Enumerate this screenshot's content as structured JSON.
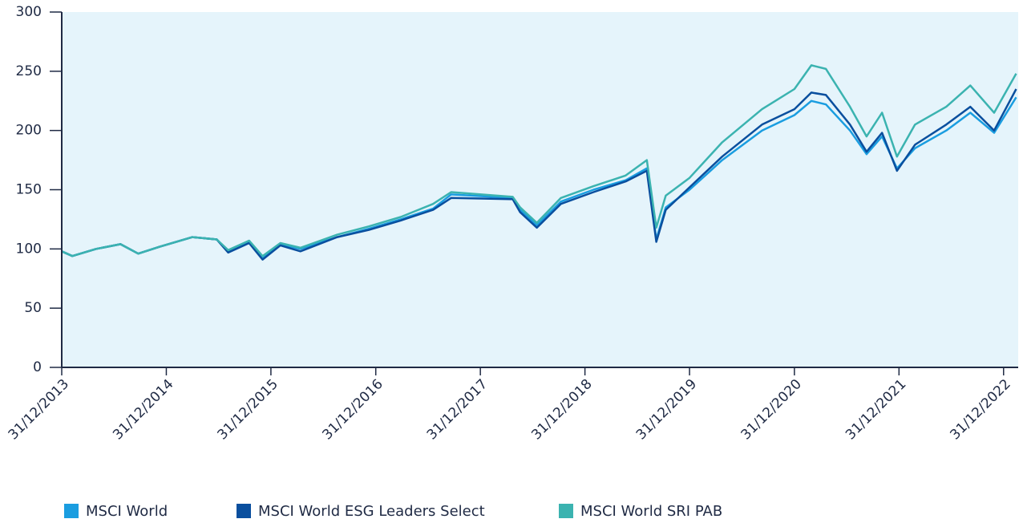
{
  "chart_data": {
    "type": "line",
    "x": [
      "31/12/2013",
      "06/02/2014",
      "30/04/2014",
      "24/07/2014",
      "24/09/2014",
      "09/12/2014",
      "01/04/2015",
      "25/06/2015",
      "04/08/2015",
      "16/10/2015",
      "02/12/2015",
      "02/02/2016",
      "12/04/2016",
      "18/08/2016",
      "06/12/2016",
      "28/03/2017",
      "19/07/2017",
      "20/09/2017",
      "23/04/2018",
      "19/05/2018",
      "16/07/2018",
      "08/10/2018",
      "30/01/2019",
      "22/05/2019",
      "04/08/2019",
      "06/09/2019",
      "09/10/2019",
      "31/12/2019",
      "23/04/2020",
      "09/09/2020",
      "31/12/2020",
      "28/02/2021",
      "20/04/2021",
      "13/07/2021",
      "09/09/2021",
      "02/11/2021",
      "24/12/2021",
      "25/02/2022",
      "14/06/2022",
      "06/09/2022",
      "28/11/2022",
      "13/02/2023"
    ],
    "series": [
      {
        "name": "MSCI World",
        "color": "#1a9de0",
        "values": [
          98,
          94,
          100,
          104,
          96,
          102,
          110,
          108,
          98,
          106,
          93,
          104,
          100,
          110,
          117,
          125,
          134,
          146,
          143,
          133,
          120,
          140,
          150,
          158,
          168,
          108,
          135,
          150,
          175,
          200,
          213,
          225,
          222,
          200,
          180,
          195,
          168,
          185,
          200,
          215,
          198,
          228
        ]
      },
      {
        "name": "MSCI World ESG Leaders Select",
        "color": "#0a4f9e",
        "values": [
          98,
          94,
          100,
          104,
          96,
          102,
          110,
          108,
          97,
          105,
          91,
          103,
          98,
          110,
          116,
          124,
          133,
          143,
          142,
          131,
          118,
          138,
          148,
          157,
          166,
          106,
          133,
          152,
          178,
          205,
          218,
          232,
          230,
          205,
          182,
          198,
          166,
          188,
          205,
          220,
          200,
          235
        ]
      },
      {
        "name": "MSCI World SRI PAB",
        "color": "#3bb3b0",
        "values": [
          98,
          94,
          100,
          104,
          96,
          102,
          110,
          108,
          99,
          107,
          94,
          105,
          101,
          112,
          119,
          127,
          138,
          148,
          144,
          135,
          122,
          143,
          153,
          162,
          175,
          118,
          145,
          160,
          190,
          218,
          235,
          255,
          252,
          220,
          195,
          215,
          178,
          205,
          220,
          238,
          215,
          248
        ]
      }
    ],
    "xlim": [
      "31/12/2013",
      "20/02/2023"
    ],
    "xticks": [
      "31/12/2013",
      "31/12/2014",
      "31/12/2015",
      "31/12/2016",
      "31/12/2017",
      "31/12/2018",
      "31/12/2019",
      "31/12/2020",
      "31/12/2021",
      "31/12/2022"
    ],
    "ylim": [
      0,
      300
    ],
    "yticks": [
      0,
      50,
      100,
      150,
      200,
      250,
      300
    ],
    "background": "#e5f4fb"
  }
}
